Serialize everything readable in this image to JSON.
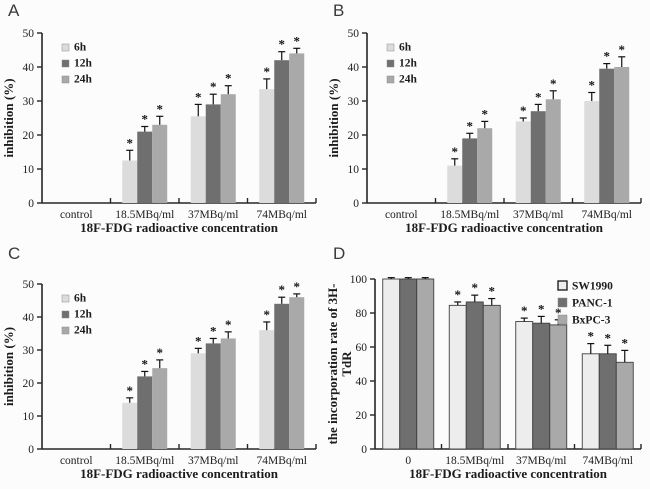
{
  "figure": {
    "background": "#fcfcfc",
    "text_color": "#1c1c1c",
    "axis_color": "#262626",
    "sig_marker": "*"
  },
  "chart_data": [
    {
      "id": "A",
      "panel_label": "A",
      "type": "bar",
      "xlabel": "18F-FDG radioactive concentration",
      "ylabel": "inhibition (%)",
      "ylim": [
        0,
        50
      ],
      "ytick_step": 10,
      "grid": false,
      "legend_position": "top-left",
      "categories": [
        "control",
        "18.5MBq/ml",
        "37MBq/ml",
        "74MBq/ml"
      ],
      "bar_outline": null,
      "series": [
        {
          "name": "6h",
          "color": "#dcdcdc",
          "values": [
            0,
            12.5,
            25.5,
            33.5
          ],
          "errors": [
            0,
            3,
            3.5,
            3
          ],
          "sig": [
            false,
            true,
            true,
            true
          ]
        },
        {
          "name": "12h",
          "color": "#6f6f6f",
          "values": [
            0,
            21,
            29,
            42
          ],
          "errors": [
            0,
            1.5,
            3,
            2.5
          ],
          "sig": [
            false,
            true,
            true,
            true
          ]
        },
        {
          "name": "24h",
          "color": "#a9a9a9",
          "values": [
            0,
            23,
            32,
            44
          ],
          "errors": [
            0,
            2.5,
            2.5,
            1.5
          ],
          "sig": [
            false,
            true,
            true,
            true
          ]
        }
      ]
    },
    {
      "id": "B",
      "panel_label": "B",
      "type": "bar",
      "xlabel": "18F-FDG radioactive concentration",
      "ylabel": "inhibition (%)",
      "ylim": [
        0,
        50
      ],
      "ytick_step": 10,
      "grid": false,
      "legend_position": "top-left",
      "categories": [
        "control",
        "18.5MBq/ml",
        "37MBq/ml",
        "74MBq/ml"
      ],
      "bar_outline": null,
      "series": [
        {
          "name": "6h",
          "color": "#dcdcdc",
          "values": [
            0,
            11,
            24,
            30
          ],
          "errors": [
            0,
            2,
            1,
            2.5
          ],
          "sig": [
            false,
            true,
            true,
            true
          ]
        },
        {
          "name": "12h",
          "color": "#6f6f6f",
          "values": [
            0,
            19,
            27,
            39.5
          ],
          "errors": [
            0,
            1.5,
            2,
            1.5
          ],
          "sig": [
            false,
            true,
            true,
            true
          ]
        },
        {
          "name": "24h",
          "color": "#a9a9a9",
          "values": [
            0,
            22,
            30.5,
            40
          ],
          "errors": [
            0,
            2,
            2.5,
            3
          ],
          "sig": [
            false,
            true,
            true,
            true
          ]
        }
      ]
    },
    {
      "id": "C",
      "panel_label": "C",
      "type": "bar",
      "xlabel": "18F-FDG radioactive concentration",
      "ylabel": "inhibition (%)",
      "ylim": [
        0,
        50
      ],
      "ytick_step": 10,
      "grid": false,
      "legend_position": "top-left",
      "categories": [
        "control",
        "18.5MBq/ml",
        "37MBq/ml",
        "74MBq/ml"
      ],
      "bar_outline": null,
      "series": [
        {
          "name": "6h",
          "color": "#dcdcdc",
          "values": [
            0,
            14,
            29,
            36
          ],
          "errors": [
            0,
            1.5,
            1.5,
            2.5
          ],
          "sig": [
            false,
            true,
            true,
            true
          ]
        },
        {
          "name": "12h",
          "color": "#6f6f6f",
          "values": [
            0,
            22,
            32,
            44
          ],
          "errors": [
            0,
            1.5,
            1.5,
            2
          ],
          "sig": [
            false,
            true,
            true,
            true
          ]
        },
        {
          "name": "24h",
          "color": "#a9a9a9",
          "values": [
            0,
            24.5,
            33.5,
            46
          ],
          "errors": [
            0,
            2.5,
            2,
            1
          ],
          "sig": [
            false,
            true,
            true,
            true
          ]
        }
      ]
    },
    {
      "id": "D",
      "panel_label": "D",
      "type": "bar",
      "xlabel": "18F-FDG radioactive concentration",
      "ylabel_lines": [
        "the incorporation rate of 3H-",
        "TdR"
      ],
      "ylim": [
        0,
        100
      ],
      "ytick_step": 20,
      "grid": false,
      "legend_position": "top-right",
      "categories": [
        "0",
        "18.5MBq/ml",
        "37MBq/ml",
        "74MBq/ml"
      ],
      "bar_outline": "#3f3f3f",
      "series": [
        {
          "name": "SW1990",
          "color": "#ededed",
          "values": [
            100,
            84.5,
            75,
            56
          ],
          "errors": [
            0.8,
            2,
            2,
            6
          ],
          "sig": [
            false,
            true,
            true,
            true
          ]
        },
        {
          "name": "PANC-1",
          "color": "#6f6f6f",
          "values": [
            100,
            86.5,
            74,
            56
          ],
          "errors": [
            0.8,
            4,
            4,
            5
          ],
          "sig": [
            false,
            true,
            true,
            true
          ]
        },
        {
          "name": "BxPC-3",
          "color": "#a9a9a9",
          "values": [
            100,
            84.5,
            73,
            51
          ],
          "errors": [
            0.8,
            4,
            3,
            7
          ],
          "sig": [
            false,
            true,
            true,
            true
          ]
        }
      ]
    }
  ]
}
